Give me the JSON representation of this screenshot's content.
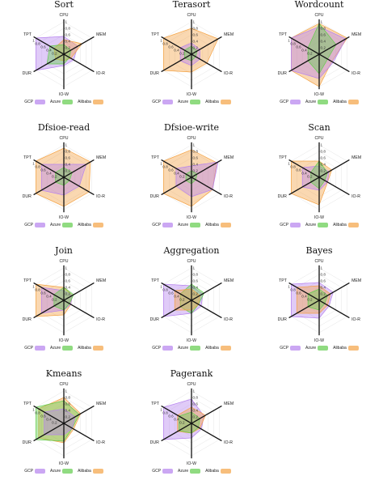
{
  "colors": {
    "GCP": "#b682ef",
    "Azure": "#62cc4c",
    "Alibaba": "#f4a345"
  },
  "legend_labels": {
    "gcp": "GCP",
    "azure": "Azure",
    "alibaba": "Alibaba"
  },
  "axes": [
    "CPU",
    "MEM",
    "IO-R",
    "IO-W",
    "DUR",
    "TPT"
  ],
  "ticks": [
    "0.2",
    "0.4",
    "0.6",
    "0.8",
    "1"
  ],
  "chart_data": [
    {
      "type": "radar",
      "title": "Sort",
      "axes": [
        "CPU",
        "MEM",
        "IO-R",
        "IO-W",
        "DUR",
        "TPT"
      ],
      "rlim": [
        0,
        1
      ],
      "series": [
        {
          "name": "GCP",
          "values": [
            0.55,
            0.5,
            0.35,
            0.35,
            1.0,
            1.0
          ]
        },
        {
          "name": "Azure",
          "values": [
            0.3,
            0.25,
            0.2,
            0.3,
            0.6,
            0.5
          ]
        },
        {
          "name": "Alibaba",
          "values": [
            0.45,
            0.65,
            0.25,
            0.2,
            0.3,
            0.35
          ]
        }
      ]
    },
    {
      "type": "radar",
      "title": "Terasort",
      "axes": [
        "CPU",
        "MEM",
        "IO-R",
        "IO-W",
        "DUR",
        "TPT"
      ],
      "rlim": [
        0,
        1
      ],
      "series": [
        {
          "name": "GCP",
          "values": [
            0.35,
            0.3,
            0.3,
            0.35,
            0.4,
            0.4
          ]
        },
        {
          "name": "Azure",
          "values": [
            0.25,
            0.2,
            0.15,
            0.2,
            0.25,
            0.25
          ]
        },
        {
          "name": "Alibaba",
          "values": [
            0.8,
            0.95,
            0.55,
            0.55,
            1.0,
            1.0
          ]
        }
      ]
    },
    {
      "type": "radar",
      "title": "Wordcount",
      "axes": [
        "CPU",
        "MEM",
        "IO-R",
        "IO-W",
        "DUR",
        "TPT"
      ],
      "rlim": [
        0,
        1
      ],
      "series": [
        {
          "name": "GCP",
          "values": [
            0.85,
            0.95,
            0.5,
            0.75,
            1.0,
            1.0
          ]
        },
        {
          "name": "Azure",
          "values": [
            0.95,
            0.6,
            0.3,
            0.6,
            0.4,
            0.4
          ]
        },
        {
          "name": "Alibaba",
          "values": [
            0.95,
            1.0,
            0.45,
            1.0,
            1.0,
            1.0
          ]
        }
      ]
    },
    {
      "type": "radar",
      "title": "Dfsioe-read",
      "axes": [
        "CPU",
        "MEM",
        "IO-R",
        "IO-W",
        "DUR",
        "TPT"
      ],
      "rlim": [
        0,
        1
      ],
      "series": [
        {
          "name": "GCP",
          "values": [
            0.4,
            0.8,
            0.55,
            0.55,
            0.8,
            0.8
          ]
        },
        {
          "name": "Azure",
          "values": [
            0.3,
            0.3,
            0.2,
            0.25,
            0.3,
            0.3
          ]
        },
        {
          "name": "Alibaba",
          "values": [
            0.9,
            0.95,
            0.9,
            0.9,
            1.0,
            1.0
          ]
        }
      ]
    },
    {
      "type": "radar",
      "title": "Dfsioe-write",
      "axes": [
        "CPU",
        "MEM",
        "IO-R",
        "IO-W",
        "DUR",
        "TPT"
      ],
      "rlim": [
        0,
        1
      ],
      "series": [
        {
          "name": "GCP",
          "values": [
            0.35,
            0.95,
            0.75,
            0.6,
            0.55,
            0.55
          ]
        },
        {
          "name": "Azure",
          "values": [
            0.2,
            0.2,
            0.15,
            0.2,
            0.2,
            0.2
          ]
        },
        {
          "name": "Alibaba",
          "values": [
            0.85,
            0.9,
            0.75,
            0.9,
            1.0,
            1.0
          ]
        }
      ]
    },
    {
      "type": "radar",
      "title": "Scan",
      "axes": [
        "CPU",
        "MEM",
        "IO-R",
        "IO-W",
        "DUR",
        "TPT"
      ],
      "rlim": [
        0,
        1
      ],
      "series": [
        {
          "name": "GCP",
          "values": [
            0.35,
            0.35,
            0.3,
            0.4,
            0.6,
            0.6
          ]
        },
        {
          "name": "Azure",
          "values": [
            0.5,
            0.3,
            0.2,
            0.35,
            0.3,
            0.3
          ]
        },
        {
          "name": "Alibaba",
          "values": [
            0.5,
            0.45,
            0.3,
            0.85,
            1.0,
            1.0
          ]
        }
      ]
    },
    {
      "type": "radar",
      "title": "Join",
      "axes": [
        "CPU",
        "MEM",
        "IO-R",
        "IO-W",
        "DUR",
        "TPT"
      ],
      "rlim": [
        0,
        1
      ],
      "series": [
        {
          "name": "GCP",
          "values": [
            0.3,
            0.3,
            0.25,
            0.3,
            0.8,
            0.8
          ]
        },
        {
          "name": "Azure",
          "values": [
            0.4,
            0.35,
            0.2,
            0.3,
            0.35,
            0.35
          ]
        },
        {
          "name": "Alibaba",
          "values": [
            0.4,
            0.3,
            0.25,
            0.45,
            1.0,
            1.0
          ]
        }
      ]
    },
    {
      "type": "radar",
      "title": "Aggregation",
      "axes": [
        "CPU",
        "MEM",
        "IO-R",
        "IO-W",
        "DUR",
        "TPT"
      ],
      "rlim": [
        0,
        1
      ],
      "series": [
        {
          "name": "GCP",
          "values": [
            0.45,
            0.4,
            0.35,
            0.4,
            1.0,
            1.0
          ]
        },
        {
          "name": "Azure",
          "values": [
            0.5,
            0.45,
            0.25,
            0.4,
            0.4,
            0.4
          ]
        },
        {
          "name": "Alibaba",
          "values": [
            0.35,
            0.3,
            0.25,
            0.3,
            0.6,
            0.6
          ]
        }
      ]
    },
    {
      "type": "radar",
      "title": "Bayes",
      "axes": [
        "CPU",
        "MEM",
        "IO-R",
        "IO-W",
        "DUR",
        "TPT"
      ],
      "rlim": [
        0,
        1
      ],
      "series": [
        {
          "name": "GCP",
          "values": [
            0.55,
            0.5,
            0.35,
            0.55,
            1.0,
            1.0
          ]
        },
        {
          "name": "Azure",
          "values": [
            0.35,
            0.3,
            0.2,
            0.3,
            0.4,
            0.4
          ]
        },
        {
          "name": "Alibaba",
          "values": [
            0.45,
            0.4,
            0.3,
            0.4,
            0.8,
            0.8
          ]
        }
      ]
    },
    {
      "type": "radar",
      "title": "Kmeans",
      "axes": [
        "CPU",
        "MEM",
        "IO-R",
        "IO-W",
        "DUR",
        "TPT"
      ],
      "rlim": [
        0,
        1
      ],
      "series": [
        {
          "name": "GCP",
          "values": [
            0.45,
            0.4,
            0.3,
            0.35,
            0.7,
            0.7
          ]
        },
        {
          "name": "Azure",
          "values": [
            0.7,
            0.55,
            0.3,
            0.55,
            1.0,
            1.0
          ]
        },
        {
          "name": "Alibaba",
          "values": [
            0.8,
            0.6,
            0.35,
            0.6,
            0.9,
            0.9
          ]
        }
      ]
    },
    {
      "type": "radar",
      "title": "Pagerank",
      "axes": [
        "CPU",
        "MEM",
        "IO-R",
        "IO-W",
        "DUR",
        "TPT"
      ],
      "rlim": [
        0,
        1
      ],
      "series": [
        {
          "name": "GCP",
          "values": [
            0.75,
            0.45,
            0.35,
            0.45,
            1.0,
            1.0
          ]
        },
        {
          "name": "Azure",
          "values": [
            0.35,
            0.3,
            0.25,
            0.3,
            0.45,
            0.45
          ]
        },
        {
          "name": "Alibaba",
          "values": [
            0.5,
            0.5,
            0.3,
            0.3,
            0.5,
            0.5
          ]
        }
      ]
    }
  ]
}
